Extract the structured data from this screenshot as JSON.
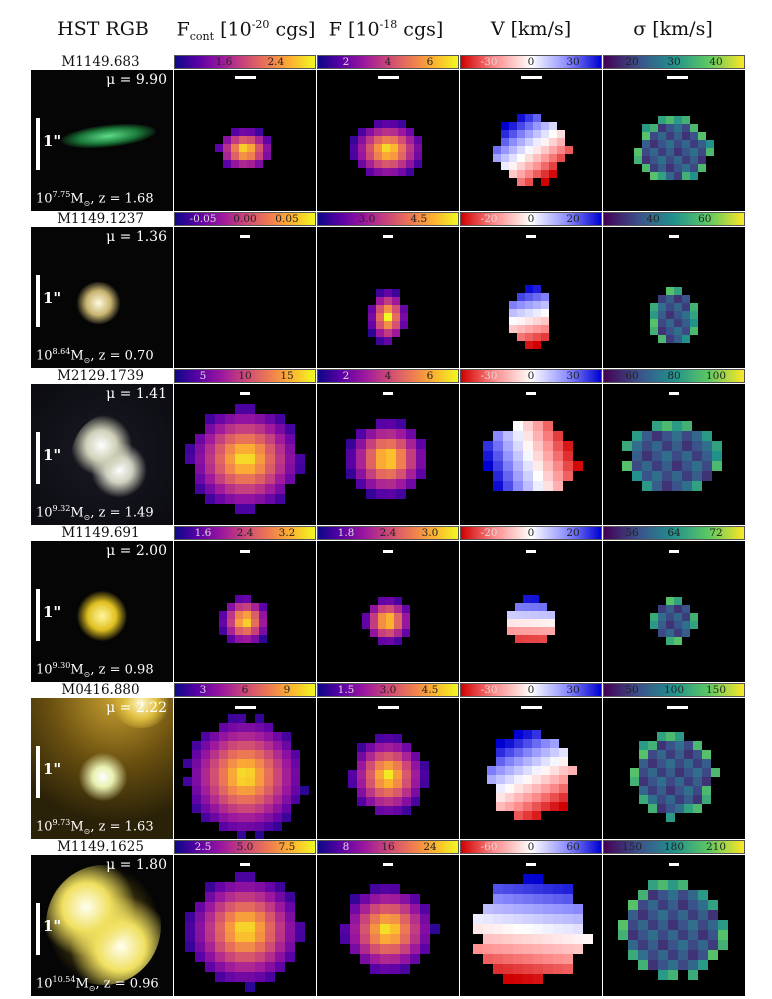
{
  "headers": {
    "hst": "HST RGB",
    "fcont_main": "F",
    "fcont_sub": "cont",
    "fcont_units_pre": "[10",
    "fcont_units_exp": "-20",
    "fcont_units_post": "cgs]",
    "f_main": "F [10",
    "f_exp": "-18",
    "f_post": "cgs]",
    "v": "V [km/s]",
    "sigma": "σ [km/s]"
  },
  "scale_label": "1\"",
  "rows": [
    {
      "name": "M1149.683",
      "mu": "μ = 9.90",
      "mass_pre": "10",
      "mass_exp": "7.75",
      "mass_post": "M",
      "z": ", z = 1.68",
      "cbar_fcont": [
        "1.6",
        "2.4"
      ],
      "cbar_f": [
        "2",
        "4",
        "6"
      ],
      "cbar_v": [
        "-30",
        "0",
        "30"
      ],
      "cbar_sigma": [
        "20",
        "30",
        "40"
      ]
    },
    {
      "name": "M1149.1237",
      "mu": "μ = 1.36",
      "mass_pre": "10",
      "mass_exp": "8.64",
      "mass_post": "M",
      "z": ", z = 0.70",
      "cbar_fcont": [
        "-0.05",
        "0.00",
        "0.05"
      ],
      "cbar_f": [
        "3.0",
        "4.5"
      ],
      "cbar_v": [
        "-20",
        "0",
        "20"
      ],
      "cbar_sigma": [
        "40",
        "60"
      ]
    },
    {
      "name": "M2129.1739",
      "mu": "μ = 1.41",
      "mass_pre": "10",
      "mass_exp": "9.32",
      "mass_post": "M",
      "z": ", z = 1.49",
      "cbar_fcont": [
        "5",
        "10",
        "15"
      ],
      "cbar_f": [
        "2",
        "4",
        "6"
      ],
      "cbar_v": [
        "-30",
        "0",
        "30"
      ],
      "cbar_sigma": [
        "60",
        "80",
        "100"
      ]
    },
    {
      "name": "M1149.691",
      "mu": "μ = 2.00",
      "mass_pre": "10",
      "mass_exp": "9.30",
      "mass_post": "M",
      "z": ", z = 0.98",
      "cbar_fcont": [
        "1.6",
        "2.4",
        "3.2"
      ],
      "cbar_f": [
        "1.8",
        "2.4",
        "3.0"
      ],
      "cbar_v": [
        "-20",
        "0",
        "20"
      ],
      "cbar_sigma": [
        "56",
        "64",
        "72"
      ]
    },
    {
      "name": "M0416.880",
      "mu": "μ = 2.22",
      "mass_pre": "10",
      "mass_exp": "9.73",
      "mass_post": "M",
      "z": ", z = 1.63",
      "cbar_fcont": [
        "3",
        "6",
        "9"
      ],
      "cbar_f": [
        "1.5",
        "3.0",
        "4.5"
      ],
      "cbar_v": [
        "-30",
        "0",
        "30"
      ],
      "cbar_sigma": [
        "50",
        "100",
        "150"
      ]
    },
    {
      "name": "M1149.1625",
      "mu": "μ = 1.80",
      "mass_pre": "10",
      "mass_exp": "10.54",
      "mass_post": "M",
      "z": ", z = 0.96",
      "cbar_fcont": [
        "2.5",
        "5.0",
        "7.5"
      ],
      "cbar_f": [
        "8",
        "16",
        "24"
      ],
      "cbar_v": [
        "-60",
        "0",
        "60"
      ],
      "cbar_sigma": [
        "150",
        "180",
        "210"
      ]
    }
  ],
  "colors": {
    "plasma": [
      "#0d0887",
      "#5c01a6",
      "#9c179e",
      "#cc4778",
      "#ed7953",
      "#fdb42f",
      "#f0f921"
    ],
    "viridis": [
      "#440154",
      "#3b528b",
      "#21918c",
      "#5ec962",
      "#fde725"
    ],
    "bwr": [
      "#d00000",
      "#ff9090",
      "#ffffff",
      "#9090ff",
      "#0000d0"
    ]
  }
}
